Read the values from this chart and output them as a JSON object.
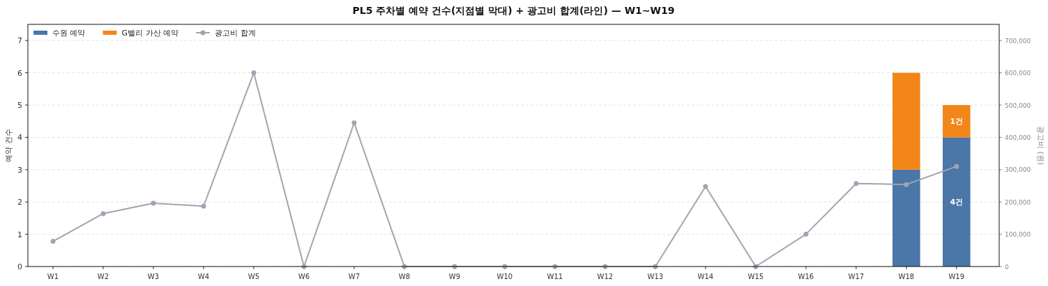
{
  "chart_data": {
    "type": "bar",
    "title": "PL5 주차별 예약 건수(지점별 막대) + 광고비 합계(라인) — W1~W19",
    "ylabel": "예약 건수",
    "y2label": "광고비 (원)",
    "categories": [
      "W1",
      "W2",
      "W3",
      "W4",
      "W5",
      "W6",
      "W7",
      "W8",
      "W9",
      "W10",
      "W11",
      "W12",
      "W13",
      "W14",
      "W15",
      "W16",
      "W17",
      "W18",
      "W19"
    ],
    "stacked": true,
    "ylim": [
      0,
      7.5
    ],
    "yticks": [
      0,
      1,
      2,
      3,
      4,
      5,
      6,
      7
    ],
    "y2lim": [
      0,
      750000
    ],
    "y2ticks": [
      {
        "value": 0,
        "label": "0"
      },
      {
        "value": 100000,
        "label": "100,000"
      },
      {
        "value": 200000,
        "label": "200,000"
      },
      {
        "value": 300000,
        "label": "300,000"
      },
      {
        "value": 400000,
        "label": "400,000"
      },
      {
        "value": 500000,
        "label": "500,000"
      },
      {
        "value": 600000,
        "label": "600,000"
      },
      {
        "value": 700000,
        "label": "700,000"
      }
    ],
    "grid": "y",
    "legend": "top left",
    "series": [
      {
        "name": "수원 예약",
        "color": "#4a76a8",
        "values": [
          0,
          0,
          0,
          0,
          0,
          0,
          0,
          0,
          0,
          0,
          0,
          0,
          0,
          0,
          0,
          0,
          0,
          3,
          4
        ],
        "value_labels": [
          null,
          null,
          null,
          null,
          null,
          null,
          null,
          null,
          null,
          null,
          null,
          null,
          null,
          null,
          null,
          null,
          null,
          null,
          "4건"
        ]
      },
      {
        "name": "G밸리 가산 예약",
        "color": "#f28619",
        "values": [
          0,
          0,
          0,
          0,
          0,
          0,
          0,
          0,
          0,
          0,
          0,
          0,
          0,
          0,
          0,
          0,
          0,
          3,
          1
        ],
        "value_labels": [
          null,
          null,
          null,
          null,
          null,
          null,
          null,
          null,
          null,
          null,
          null,
          null,
          null,
          null,
          null,
          null,
          null,
          null,
          "1건"
        ]
      },
      {
        "name": "광고비 합계",
        "type": "line",
        "axis": "y2",
        "color": "#a0a4b0",
        "marker": "circle",
        "line_style": "solid",
        "values": [
          78000,
          164000,
          196000,
          187000,
          600000,
          0,
          445000,
          0,
          0,
          0,
          0,
          0,
          0,
          248000,
          0,
          100000,
          257000,
          254000,
          310000
        ]
      }
    ]
  }
}
